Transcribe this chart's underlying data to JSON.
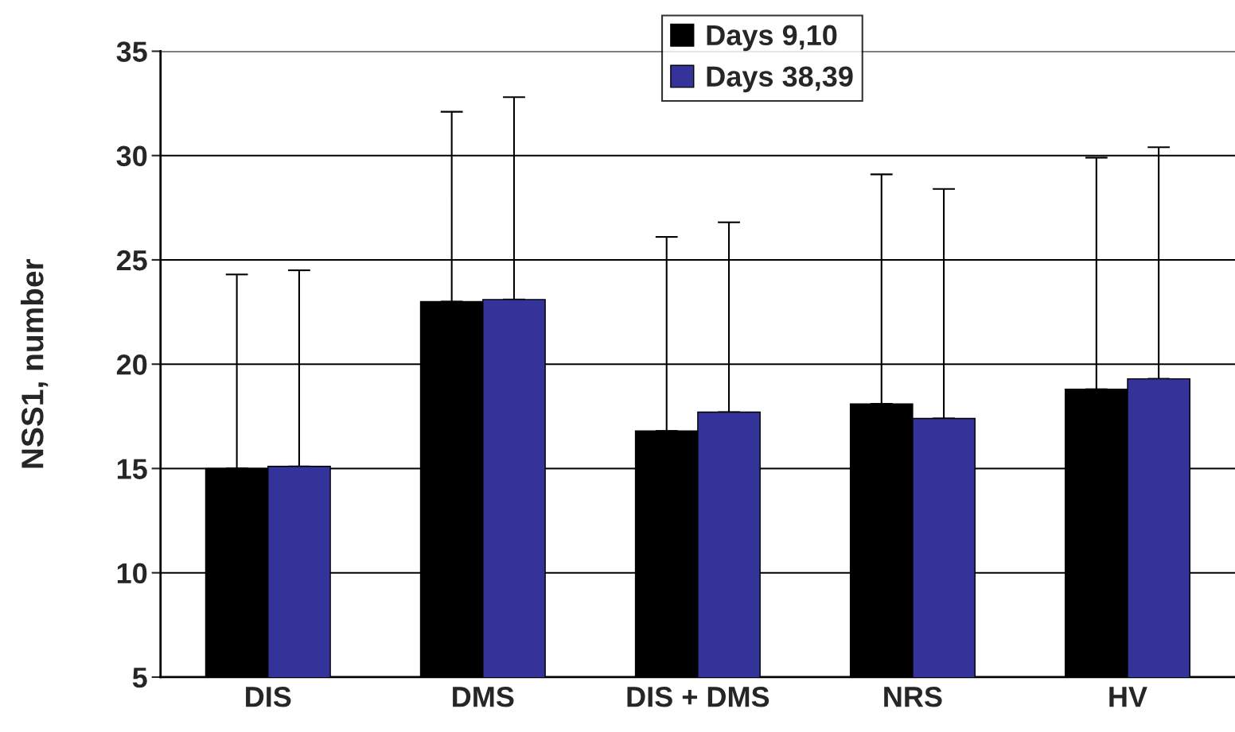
{
  "chart_data": {
    "type": "bar",
    "ylabel": "NSS1, number",
    "categories": [
      "DIS",
      "DMS",
      "DIS + DMS",
      "NRS",
      "HV"
    ],
    "series": [
      {
        "name": "Days 9,10",
        "color": "#000000",
        "values": [
          15.0,
          23.0,
          16.8,
          18.1,
          18.8
        ],
        "errors": [
          [
            15.0,
            24.3
          ],
          [
            23.0,
            32.1
          ],
          [
            16.8,
            26.1
          ],
          [
            18.1,
            29.1
          ],
          [
            18.8,
            29.9
          ]
        ]
      },
      {
        "name": "Days 38,39",
        "color": "#333399",
        "values": [
          15.1,
          23.1,
          17.7,
          17.4,
          19.3
        ],
        "errors": [
          [
            15.1,
            24.5
          ],
          [
            23.1,
            32.8
          ],
          [
            17.7,
            26.8
          ],
          [
            17.4,
            28.4
          ],
          [
            19.3,
            30.4
          ]
        ]
      }
    ],
    "ylim": [
      5,
      35
    ],
    "yticks": [
      5,
      10,
      15,
      20,
      25,
      30,
      35
    ],
    "grid": "y",
    "legend": "top"
  }
}
